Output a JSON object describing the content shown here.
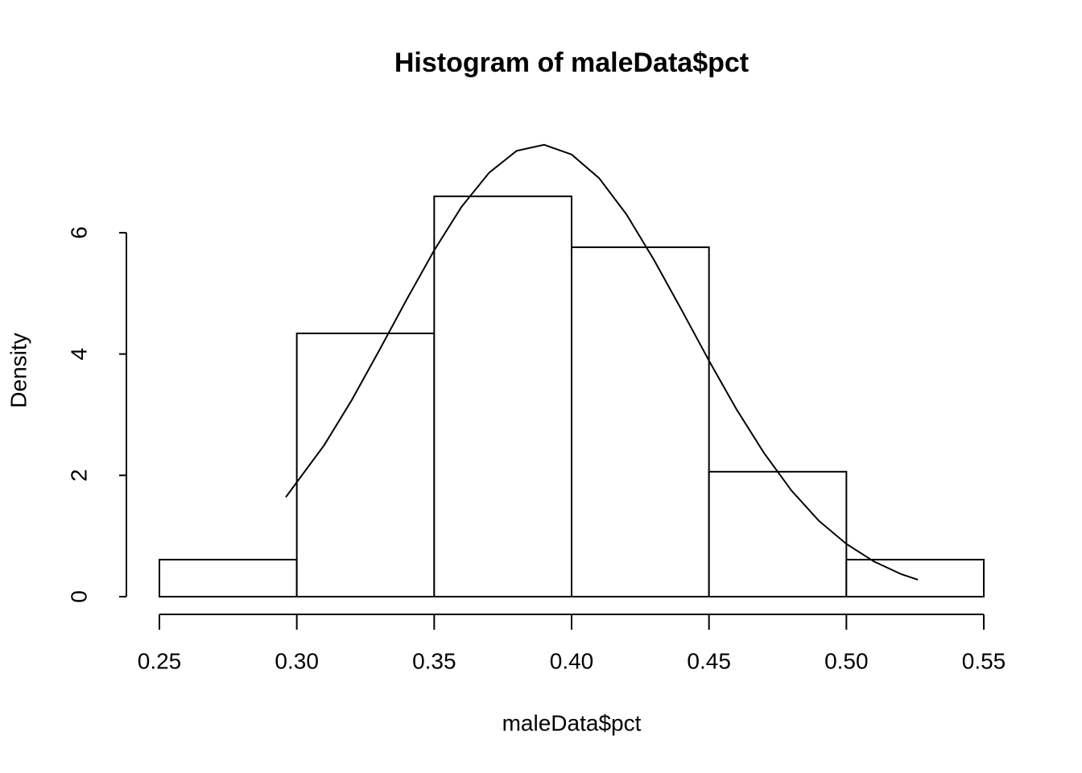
{
  "chart_data": {
    "type": "histogram",
    "title": "Histogram of maleData$pct",
    "xlabel": "maleData$pct",
    "ylabel": "Density",
    "bins": [
      0.25,
      0.3,
      0.35,
      0.4,
      0.45,
      0.5,
      0.55
    ],
    "values": [
      0.61,
      4.34,
      6.6,
      5.76,
      2.06,
      0.61
    ],
    "lines": [
      {
        "x": [
          0.296,
          0.31,
          0.32,
          0.33,
          0.34,
          0.35,
          0.36,
          0.37,
          0.38,
          0.39,
          0.4,
          0.41,
          0.42,
          0.43,
          0.44,
          0.45,
          0.46,
          0.47,
          0.48,
          0.49,
          0.5,
          0.51,
          0.52,
          0.526
        ],
        "values": [
          1.64,
          2.5,
          3.24,
          4.06,
          4.9,
          5.71,
          6.43,
          6.99,
          7.35,
          7.45,
          7.29,
          6.9,
          6.3,
          5.55,
          4.73,
          3.89,
          3.09,
          2.37,
          1.75,
          1.25,
          0.87,
          0.58,
          0.37,
          0.28
        ]
      }
    ],
    "xlim": [
      0.25,
      0.55
    ],
    "ylim": [
      0,
      7.5
    ],
    "xticks": [
      0.25,
      {
        "value": 0.3,
        "label": "0.30"
      },
      0.35,
      {
        "value": 0.4,
        "label": "0.40"
      },
      0.45,
      {
        "value": 0.5,
        "label": "0.50"
      },
      0.55
    ],
    "yticks": [
      0,
      2,
      4,
      6
    ],
    "color": "#ffffff",
    "edgecolor": "#000000"
  }
}
